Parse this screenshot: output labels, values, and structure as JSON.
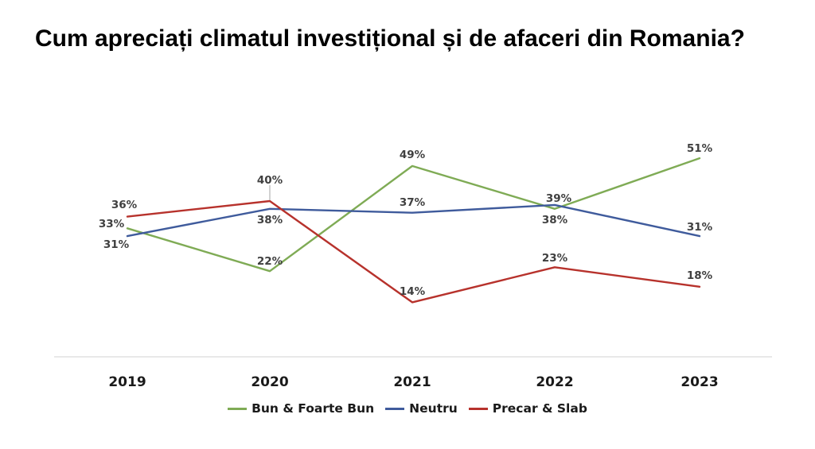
{
  "chart_data": {
    "type": "line",
    "title": "Cum apreciați climatul investițional și de afaceri din Romania?",
    "categories": [
      "2019",
      "2020",
      "2021",
      "2022",
      "2023"
    ],
    "series": [
      {
        "name": "Bun & Foarte Bun",
        "color": "#7fab55",
        "values": [
          33,
          22,
          49,
          38,
          51
        ]
      },
      {
        "name": "Neutru",
        "color": "#3f5b9c",
        "values": [
          31,
          38,
          37,
          39,
          31
        ]
      },
      {
        "name": "Precar & Slab",
        "color": "#b7322c",
        "values": [
          36,
          40,
          14,
          23,
          18
        ]
      }
    ],
    "data_labels": [
      {
        "series": 0,
        "index": 0,
        "text": "33%"
      },
      {
        "series": 0,
        "index": 1,
        "text": "22%"
      },
      {
        "series": 0,
        "index": 2,
        "text": "49%"
      },
      {
        "series": 0,
        "index": 3,
        "text": "38%"
      },
      {
        "series": 0,
        "index": 4,
        "text": "51%"
      },
      {
        "series": 1,
        "index": 0,
        "text": "31%"
      },
      {
        "series": 1,
        "index": 1,
        "text": "38%"
      },
      {
        "series": 1,
        "index": 2,
        "text": "37%"
      },
      {
        "series": 1,
        "index": 3,
        "text": "39%"
      },
      {
        "series": 1,
        "index": 4,
        "text": "31%"
      },
      {
        "series": 2,
        "index": 0,
        "text": "36%"
      },
      {
        "series": 2,
        "index": 1,
        "text": "40%"
      },
      {
        "series": 2,
        "index": 2,
        "text": "14%"
      },
      {
        "series": 2,
        "index": 3,
        "text": "23%"
      },
      {
        "series": 2,
        "index": 4,
        "text": "18%"
      }
    ],
    "grid": false,
    "legend_position": "bottom"
  }
}
